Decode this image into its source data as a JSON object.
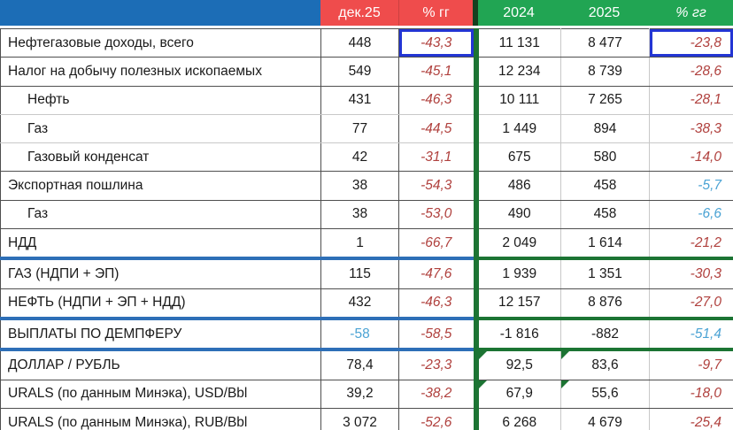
{
  "palette": {
    "header_blue": "#1C6DB6",
    "header_red": "#EF4C4C",
    "header_green": "#21A553",
    "header_divider": "#16401F",
    "box_blue": "#2335D4",
    "sep_blue": "#2E6FB7",
    "sep_green": "#1C7433",
    "grid_dark": "#4F4F4F",
    "grid_light": "#C8C8C8",
    "text_red": "#B0413E",
    "text_blue": "#4BA3D4",
    "text_black": "#1A1A1A"
  },
  "header": {
    "col_dec": "дек.25",
    "col_pct_left": "% гг",
    "col_2024": "2024",
    "col_2025": "2025",
    "col_pct_right": "% гг"
  },
  "chart_data": {
    "type": "table",
    "columns": [
      "",
      "дек.25",
      "% гг",
      "2024",
      "2025",
      "% гг"
    ],
    "rows": [
      [
        "Нефтегазовые доходы, всего",
        "448",
        "-43,3",
        "11 131",
        "8 477",
        "-23,8"
      ],
      [
        "Налог на добычу полезных ископаемых",
        "549",
        "-45,1",
        "12 234",
        "8 739",
        "-28,6"
      ],
      [
        "Нефть",
        "431",
        "-46,3",
        "10 111",
        "7 265",
        "-28,1"
      ],
      [
        "Газ",
        "77",
        "-44,5",
        "1 449",
        "894",
        "-38,3"
      ],
      [
        "Газовый конденсат",
        "42",
        "-31,1",
        "675",
        "580",
        "-14,0"
      ],
      [
        "Экспортная пошлина",
        "38",
        "-54,3",
        "486",
        "458",
        "-5,7"
      ],
      [
        "Газ",
        "38",
        "-53,0",
        "490",
        "458",
        "-6,6"
      ],
      [
        "НДД",
        "1",
        "-66,7",
        "2 049",
        "1 614",
        "-21,2"
      ],
      [
        "ГАЗ (НДПИ + ЭП)",
        "115",
        "-47,6",
        "1 939",
        "1 351",
        "-30,3"
      ],
      [
        "НЕФТЬ (НДПИ + ЭП + НДД)",
        "432",
        "-46,3",
        "12 157",
        "8 876",
        "-27,0"
      ],
      [
        "ВЫПЛАТЫ ПО ДЕМПФЕРУ",
        "-58",
        "-58,5",
        "-1 816",
        "-882",
        "-51,4"
      ],
      [
        "ДОЛЛАР / РУБЛЬ",
        "78,4",
        "-23,3",
        "92,5",
        "83,6",
        "-9,7"
      ],
      [
        "URALS (по данным Минэка), USD/Bbl",
        "39,2",
        "-38,2",
        "67,9",
        "55,6",
        "-18,0"
      ],
      [
        "URALS (по данным Минэка), RUB/Bbl",
        "3 072",
        "-52,6",
        "6 268",
        "4 679",
        "-25,4"
      ]
    ]
  },
  "row_meta": [
    {
      "boxed_pct": true
    },
    {},
    {
      "indent": true,
      "light_bottom": true
    },
    {
      "indent": true,
      "light_bottom": true
    },
    {
      "indent": true
    },
    {
      "pct2_blue": true
    },
    {
      "indent": true,
      "pct2_blue": true
    },
    {
      "thick_bottom": true
    },
    {},
    {
      "thick_bottom": true
    },
    {
      "thick_bottom": true,
      "dec_blue": true,
      "pct2_blue": true
    },
    {
      "flags": [
        3,
        4
      ]
    },
    {
      "flags": [
        3,
        4
      ]
    },
    {}
  ]
}
